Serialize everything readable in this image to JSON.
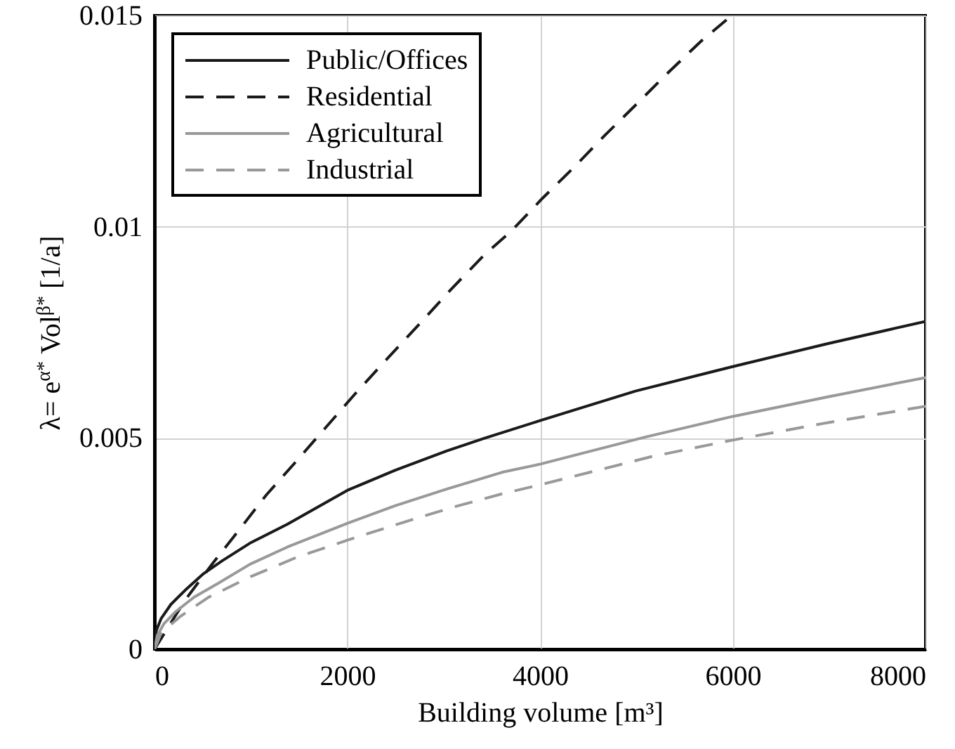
{
  "chart_data": {
    "type": "line",
    "xlabel": "Building volume [m³]",
    "ylabel": "λ= e$^{α*}$ Vol$^{β*}$ [1/a]",
    "xlim": [
      0,
      8000
    ],
    "xticks": [
      0,
      2000,
      4000,
      6000,
      8000
    ],
    "ylim": [
      0,
      0.015
    ],
    "yticks": [
      0,
      0.005,
      0.01,
      0.015
    ],
    "grid": true,
    "legend": "top left",
    "series": [
      {
        "name": "Public/Offices",
        "color": "#1a1a1a",
        "line_style": "solid",
        "x": [
          0,
          20,
          70,
          170,
          320,
          510,
          700,
          990,
          1380,
          2000,
          2500,
          3030,
          3420,
          4000,
          4990,
          6000,
          6980,
          8000
        ],
        "values": [
          0,
          0.00045,
          0.00073,
          0.00106,
          0.0014,
          0.00179,
          0.00209,
          0.00251,
          0.00296,
          0.00376,
          0.00424,
          0.00469,
          0.00499,
          0.00541,
          0.00611,
          0.00669,
          0.00723,
          0.00776
        ]
      },
      {
        "name": "Residential",
        "color": "#1a1a1a",
        "line_style": "dashed",
        "x": [
          0,
          320,
          610,
          870,
          1160,
          1460,
          1770,
          2080,
          2400,
          2790,
          3070,
          3420,
          3700,
          4020,
          4350,
          4680,
          5010,
          5340,
          5680,
          5990
        ],
        "values": [
          0,
          0.00117,
          0.00205,
          0.0028,
          0.00365,
          0.00442,
          0.00523,
          0.00604,
          0.00684,
          0.0078,
          0.0085,
          0.00933,
          0.00989,
          0.01066,
          0.0114,
          0.01218,
          0.01292,
          0.01367,
          0.01441,
          0.015
        ]
      },
      {
        "name": "Agricultural",
        "color": "#999999",
        "line_style": "solid",
        "x": [
          0,
          30,
          100,
          220,
          410,
          660,
          990,
          1380,
          2000,
          2500,
          3030,
          3610,
          4000,
          5090,
          6000,
          6980,
          8000
        ],
        "values": [
          0,
          0.00033,
          0.00061,
          0.00089,
          0.00123,
          0.00156,
          0.00201,
          0.00242,
          0.00298,
          0.0034,
          0.00379,
          0.00419,
          0.00438,
          0.00502,
          0.00551,
          0.00597,
          0.00643
        ]
      },
      {
        "name": "Industrial",
        "color": "#999999",
        "line_style": "dashed",
        "x": [
          0,
          70,
          270,
          560,
          990,
          1480,
          2000,
          2550,
          3080,
          3610,
          4000,
          5160,
          6000,
          6930,
          8000
        ],
        "values": [
          0,
          0.00039,
          0.00078,
          0.00123,
          0.00171,
          0.00218,
          0.00258,
          0.00298,
          0.00335,
          0.00368,
          0.00389,
          0.00456,
          0.00495,
          0.00534,
          0.00575
        ]
      }
    ]
  }
}
